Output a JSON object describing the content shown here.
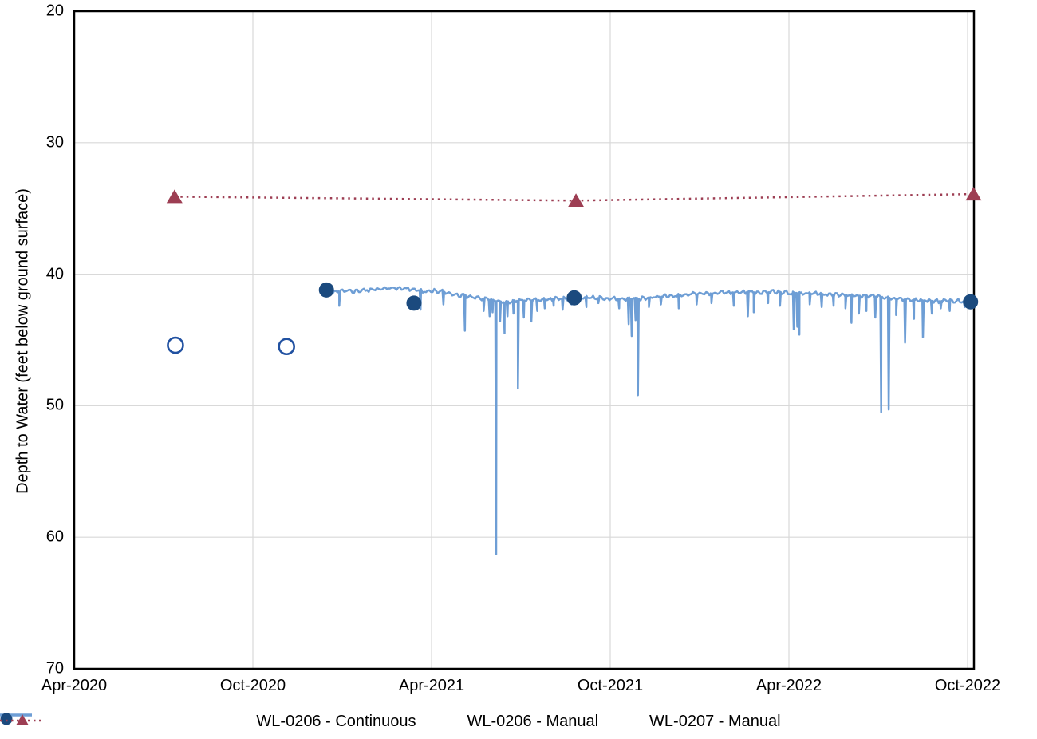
{
  "chart_data": {
    "type": "line",
    "title": "",
    "xlabel": "",
    "ylabel": "Depth to Water (feet below ground surface)",
    "y_axis": {
      "min": 20,
      "max": 70,
      "ticks": [
        20,
        30,
        40,
        50,
        60,
        70
      ],
      "direction": "depth-increases-downward"
    },
    "x_axis": {
      "min_month": 0,
      "max_month": 30.2,
      "tick_months": [
        0,
        6,
        12,
        18,
        24,
        30
      ],
      "tick_labels": [
        "Apr-2020",
        "Oct-2020",
        "Apr-2021",
        "Oct-2021",
        "Apr-2022",
        "Oct-2022"
      ]
    },
    "grid": {
      "show": true,
      "color": "#d9d9d9",
      "horizontal_at": [
        30,
        40,
        50,
        60
      ],
      "vertical_at_months": [
        6,
        12,
        18,
        24,
        30
      ]
    },
    "axis_border_color": "#000000",
    "series": [
      {
        "name": "WL-0206 - Continuous",
        "type": "line",
        "color": "#6e9ed5",
        "line_width": 2.5,
        "noise_amplitude": 0.16,
        "baseline": [
          [
            8.57,
            41.35
          ],
          [
            8.8,
            41.3
          ],
          [
            9.1,
            41.3
          ],
          [
            9.4,
            41.28
          ],
          [
            9.7,
            41.22
          ],
          [
            10.0,
            41.18
          ],
          [
            10.3,
            41.12
          ],
          [
            10.6,
            41.08
          ],
          [
            10.9,
            41.05
          ],
          [
            11.2,
            41.12
          ],
          [
            11.5,
            41.22
          ],
          [
            11.8,
            41.28
          ],
          [
            12.1,
            41.25
          ],
          [
            12.4,
            41.35
          ],
          [
            12.7,
            41.5
          ],
          [
            13.0,
            41.6
          ],
          [
            13.3,
            41.72
          ],
          [
            13.6,
            41.82
          ],
          [
            13.9,
            41.92
          ],
          [
            14.2,
            42.05
          ],
          [
            14.5,
            42.15
          ],
          [
            14.8,
            42.05
          ],
          [
            15.1,
            42.0
          ],
          [
            15.4,
            41.98
          ],
          [
            15.7,
            41.95
          ],
          [
            16.0,
            41.9
          ],
          [
            16.5,
            41.85
          ],
          [
            17.0,
            41.8
          ],
          [
            17.5,
            41.8
          ],
          [
            18.0,
            41.85
          ],
          [
            18.5,
            41.9
          ],
          [
            19.0,
            41.85
          ],
          [
            19.5,
            41.75
          ],
          [
            20.0,
            41.65
          ],
          [
            20.5,
            41.55
          ],
          [
            21.0,
            41.5
          ],
          [
            21.5,
            41.45
          ],
          [
            22.0,
            41.4
          ],
          [
            22.5,
            41.35
          ],
          [
            23.0,
            41.4
          ],
          [
            23.5,
            41.35
          ],
          [
            24.0,
            41.4
          ],
          [
            24.5,
            41.45
          ],
          [
            25.0,
            41.5
          ],
          [
            25.5,
            41.55
          ],
          [
            26.0,
            41.6
          ],
          [
            26.5,
            41.65
          ],
          [
            27.0,
            41.7
          ],
          [
            27.5,
            41.85
          ],
          [
            28.0,
            41.95
          ],
          [
            28.5,
            42.0
          ],
          [
            29.0,
            42.05
          ],
          [
            29.5,
            42.0
          ],
          [
            30.1,
            42.1
          ]
        ],
        "spikes": [
          [
            8.9,
            42.4
          ],
          [
            11.63,
            42.7
          ],
          [
            12.4,
            42.3
          ],
          [
            13.12,
            44.3
          ],
          [
            13.75,
            42.8
          ],
          [
            13.95,
            43.2
          ],
          [
            14.05,
            42.9
          ],
          [
            14.17,
            61.3
          ],
          [
            14.3,
            43.6
          ],
          [
            14.45,
            44.5
          ],
          [
            14.55,
            43.2
          ],
          [
            14.75,
            43.0
          ],
          [
            14.9,
            48.7
          ],
          [
            15.1,
            43.3
          ],
          [
            15.35,
            43.6
          ],
          [
            15.55,
            42.8
          ],
          [
            15.8,
            42.6
          ],
          [
            16.1,
            42.4
          ],
          [
            16.4,
            42.7
          ],
          [
            16.7,
            42.3
          ],
          [
            17.2,
            42.5
          ],
          [
            17.6,
            42.2
          ],
          [
            18.3,
            42.6
          ],
          [
            18.62,
            43.8
          ],
          [
            18.72,
            44.7
          ],
          [
            18.85,
            43.5
          ],
          [
            18.93,
            49.2
          ],
          [
            19.3,
            42.5
          ],
          [
            19.7,
            42.3
          ],
          [
            20.3,
            42.6
          ],
          [
            20.9,
            42.3
          ],
          [
            21.4,
            42.2
          ],
          [
            22.15,
            42.4
          ],
          [
            22.62,
            43.2
          ],
          [
            22.82,
            42.9
          ],
          [
            23.3,
            42.2
          ],
          [
            23.7,
            42.4
          ],
          [
            24.16,
            44.2
          ],
          [
            24.28,
            44.0
          ],
          [
            24.35,
            44.6
          ],
          [
            24.7,
            42.3
          ],
          [
            25.1,
            42.5
          ],
          [
            25.5,
            42.4
          ],
          [
            25.9,
            42.6
          ],
          [
            26.1,
            43.7
          ],
          [
            26.35,
            43.0
          ],
          [
            26.6,
            42.8
          ],
          [
            26.9,
            43.3
          ],
          [
            27.1,
            50.5
          ],
          [
            27.35,
            50.3
          ],
          [
            27.6,
            43.1
          ],
          [
            27.9,
            45.2
          ],
          [
            28.2,
            43.4
          ],
          [
            28.5,
            44.8
          ],
          [
            28.8,
            43.0
          ],
          [
            29.1,
            42.6
          ],
          [
            29.4,
            42.8
          ],
          [
            29.9,
            42.5
          ]
        ]
      },
      {
        "name": "WL-0206 - Manual",
        "type": "scatter",
        "marker": "circle-filled",
        "color": "#1b4a7e",
        "marker_radius": 9.5,
        "points": [
          [
            8.47,
            41.2
          ],
          [
            11.41,
            42.2
          ],
          [
            16.79,
            41.8
          ],
          [
            30.1,
            42.1
          ]
        ]
      },
      {
        "name": "open-circle-points",
        "type": "scatter",
        "marker": "circle-open",
        "color": "#2151a1",
        "marker_radius": 9.5,
        "stroke_width": 2.6,
        "points": [
          [
            3.4,
            45.4
          ],
          [
            7.13,
            45.5
          ]
        ]
      },
      {
        "name": "WL-0207 - Manual",
        "type": "line-scatter",
        "marker": "triangle-filled",
        "line_style": "dotted",
        "color": "#9d3e53",
        "marker_size": 10,
        "points": [
          [
            3.37,
            34.1
          ],
          [
            16.85,
            34.4
          ],
          [
            30.2,
            33.9
          ]
        ]
      }
    ],
    "legend": {
      "position": "bottom",
      "items": [
        {
          "label": "WL-0206 - Continuous",
          "swatch": "line"
        },
        {
          "label": "WL-0206 - Manual",
          "swatch": "circle"
        },
        {
          "label": "WL-0207 - Manual",
          "swatch": "dotted-triangle"
        }
      ]
    }
  }
}
